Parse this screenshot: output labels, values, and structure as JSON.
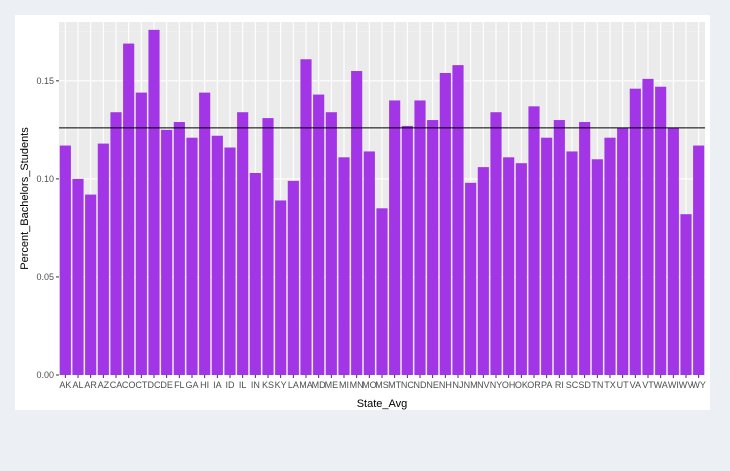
{
  "chart_data": {
    "type": "bar",
    "xlabel": "State_Avg",
    "ylabel": "Percent_Bachelors_Students",
    "ylim": [
      0,
      0.18
    ],
    "yticks": [
      0.0,
      0.05,
      0.1,
      0.15
    ],
    "ytick_labels": [
      "0.00",
      "0.05",
      "0.10",
      "0.15"
    ],
    "reference_line": 0.126,
    "grid": true,
    "bar_color": "#a235e6",
    "panel_color": "#ebebeb",
    "categories": [
      "AK",
      "AL",
      "AR",
      "AZ",
      "CA",
      "CO",
      "CT",
      "DC",
      "DE",
      "FL",
      "GA",
      "HI",
      "IA",
      "ID",
      "IL",
      "IN",
      "KS",
      "KY",
      "LA",
      "MA",
      "MD",
      "ME",
      "MI",
      "MN",
      "MO",
      "MS",
      "MT",
      "NC",
      "ND",
      "NE",
      "NH",
      "NJ",
      "NM",
      "NV",
      "NY",
      "OH",
      "OK",
      "OR",
      "PA",
      "RI",
      "SC",
      "SD",
      "TN",
      "TX",
      "UT",
      "VA",
      "VT",
      "WA",
      "WI",
      "WV",
      "WY"
    ],
    "values": [
      0.117,
      0.1,
      0.092,
      0.118,
      0.134,
      0.169,
      0.144,
      0.176,
      0.125,
      0.129,
      0.121,
      0.144,
      0.122,
      0.116,
      0.134,
      0.103,
      0.131,
      0.089,
      0.099,
      0.161,
      0.143,
      0.134,
      0.111,
      0.155,
      0.114,
      0.085,
      0.14,
      0.127,
      0.14,
      0.13,
      0.154,
      0.158,
      0.098,
      0.106,
      0.134,
      0.111,
      0.108,
      0.137,
      0.121,
      0.13,
      0.114,
      0.129,
      0.11,
      0.121,
      0.126,
      0.146,
      0.151,
      0.147,
      0.126,
      0.082,
      0.117
    ]
  }
}
